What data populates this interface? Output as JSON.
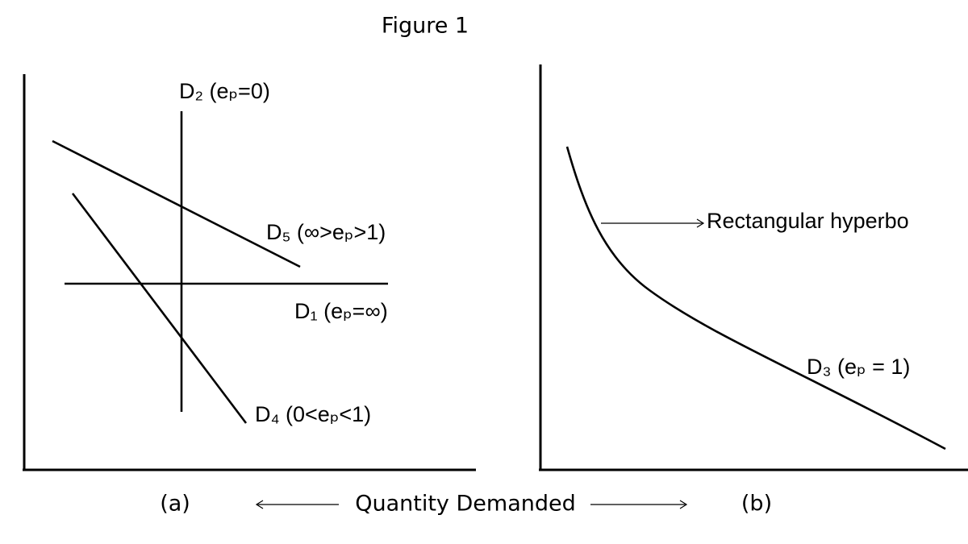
{
  "title": "Figure 1",
  "panels": [
    {
      "label": "(a)",
      "curves": [
        "D₂ (eₚ=0)",
        "D₅ (∞>eₚ>1)",
        "D₁ (eₚ=∞)",
        "D₄ (0<eₚ<1)"
      ]
    },
    {
      "label": "(b)",
      "annotation": "Rectangular hyperbo",
      "curves": [
        "D₃ (eₚ = 1)"
      ]
    }
  ],
  "x_axis_label": "Quantity Demanded"
}
